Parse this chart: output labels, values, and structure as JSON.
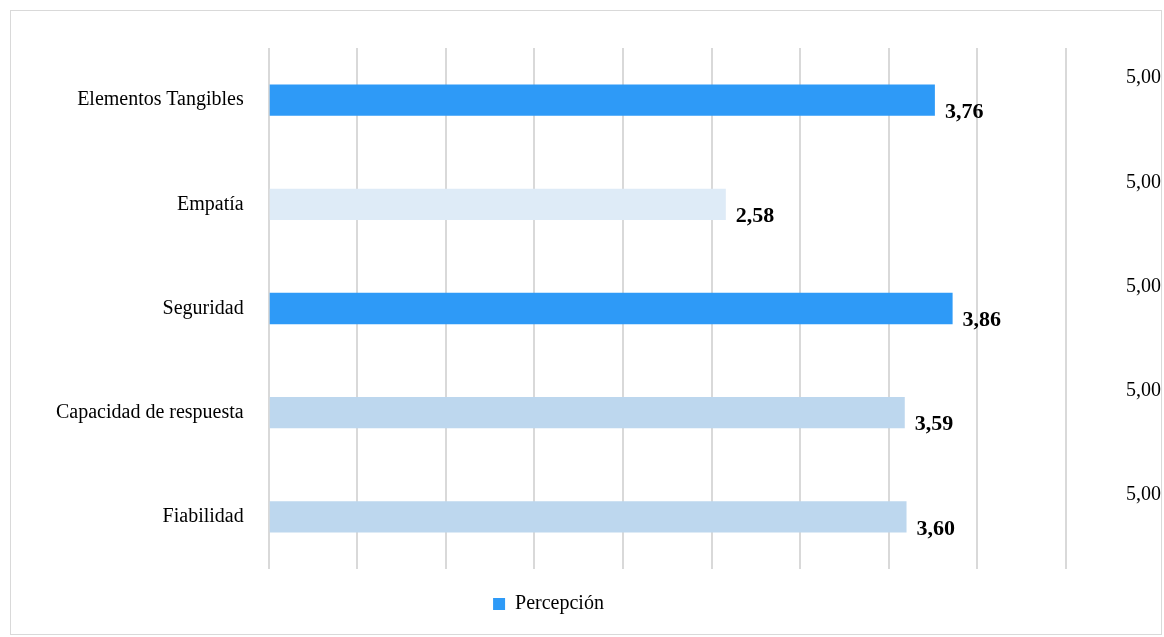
{
  "chart_data": {
    "type": "bar",
    "orientation": "horizontal",
    "categories": [
      "Elementos Tangibles",
      "Empatía",
      "Seguridad",
      "Capacidad de respuesta",
      "Fiabilidad"
    ],
    "series": [
      {
        "name": "Percepción",
        "color": "#2e9af7",
        "colors": [
          "#2e9af7",
          "#deebf7",
          "#2e9af7",
          "#bdd7ee",
          "#bdd7ee"
        ],
        "values": [
          3.76,
          2.58,
          3.86,
          3.59,
          3.6
        ],
        "value_labels": [
          "3,76",
          "2,58",
          "3,86",
          "3,59",
          "3,60"
        ]
      }
    ],
    "xlim": [
      0,
      4.5
    ],
    "xticks": [
      {
        "value": 0,
        "label": null
      },
      {
        "value": 0.5,
        "label": null
      },
      {
        "value": 1,
        "label": null
      },
      {
        "value": 1.5,
        "label": null
      },
      {
        "value": 2,
        "label": null
      },
      {
        "value": 2.5,
        "label": null
      },
      {
        "value": 3,
        "label": null
      },
      {
        "value": 3.5,
        "label": null
      },
      {
        "value": 4,
        "label": null
      },
      {
        "value": 4.5,
        "label": null
      }
    ],
    "tick_labels": "y",
    "grid": "x",
    "legend": "bottom",
    "annotations": [
      "5,00",
      "5,00",
      "5,00",
      "5,00",
      "5,00"
    ]
  }
}
